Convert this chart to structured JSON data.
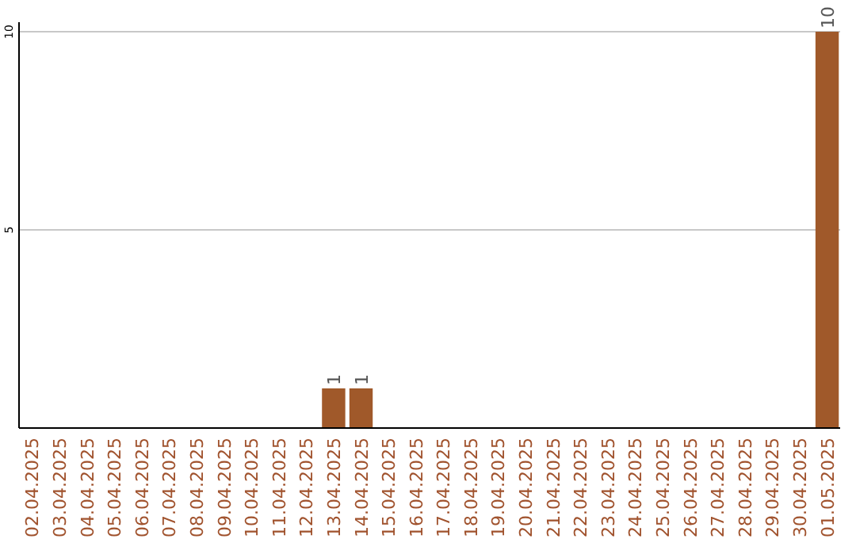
{
  "chart_data": {
    "type": "bar",
    "categories": [
      "02.04.2025",
      "03.04.2025",
      "04.04.2025",
      "05.04.2025",
      "06.04.2025",
      "07.04.2025",
      "08.04.2025",
      "09.04.2025",
      "10.04.2025",
      "11.04.2025",
      "12.04.2025",
      "13.04.2025",
      "14.04.2025",
      "15.04.2025",
      "16.04.2025",
      "17.04.2025",
      "18.04.2025",
      "19.04.2025",
      "20.04.2025",
      "21.04.2025",
      "22.04.2025",
      "23.04.2025",
      "24.04.2025",
      "25.04.2025",
      "26.04.2025",
      "27.04.2025",
      "28.04.2025",
      "29.04.2025",
      "30.04.2025",
      "01.05.2025"
    ],
    "values": [
      0,
      0,
      0,
      0,
      0,
      0,
      0,
      0,
      0,
      0,
      0,
      1,
      1,
      0,
      0,
      0,
      0,
      0,
      0,
      0,
      0,
      0,
      0,
      0,
      0,
      0,
      0,
      0,
      0,
      10
    ],
    "value_labels": [
      null,
      null,
      null,
      null,
      null,
      null,
      null,
      null,
      null,
      null,
      null,
      "1",
      "1",
      null,
      null,
      null,
      null,
      null,
      null,
      null,
      null,
      null,
      null,
      null,
      null,
      null,
      null,
      null,
      null,
      "10"
    ],
    "color": "#a0592a",
    "ylim": [
      0,
      10
    ],
    "yticks": [
      {
        "value": 0,
        "label": null
      },
      5,
      10
    ],
    "grid": "y"
  }
}
